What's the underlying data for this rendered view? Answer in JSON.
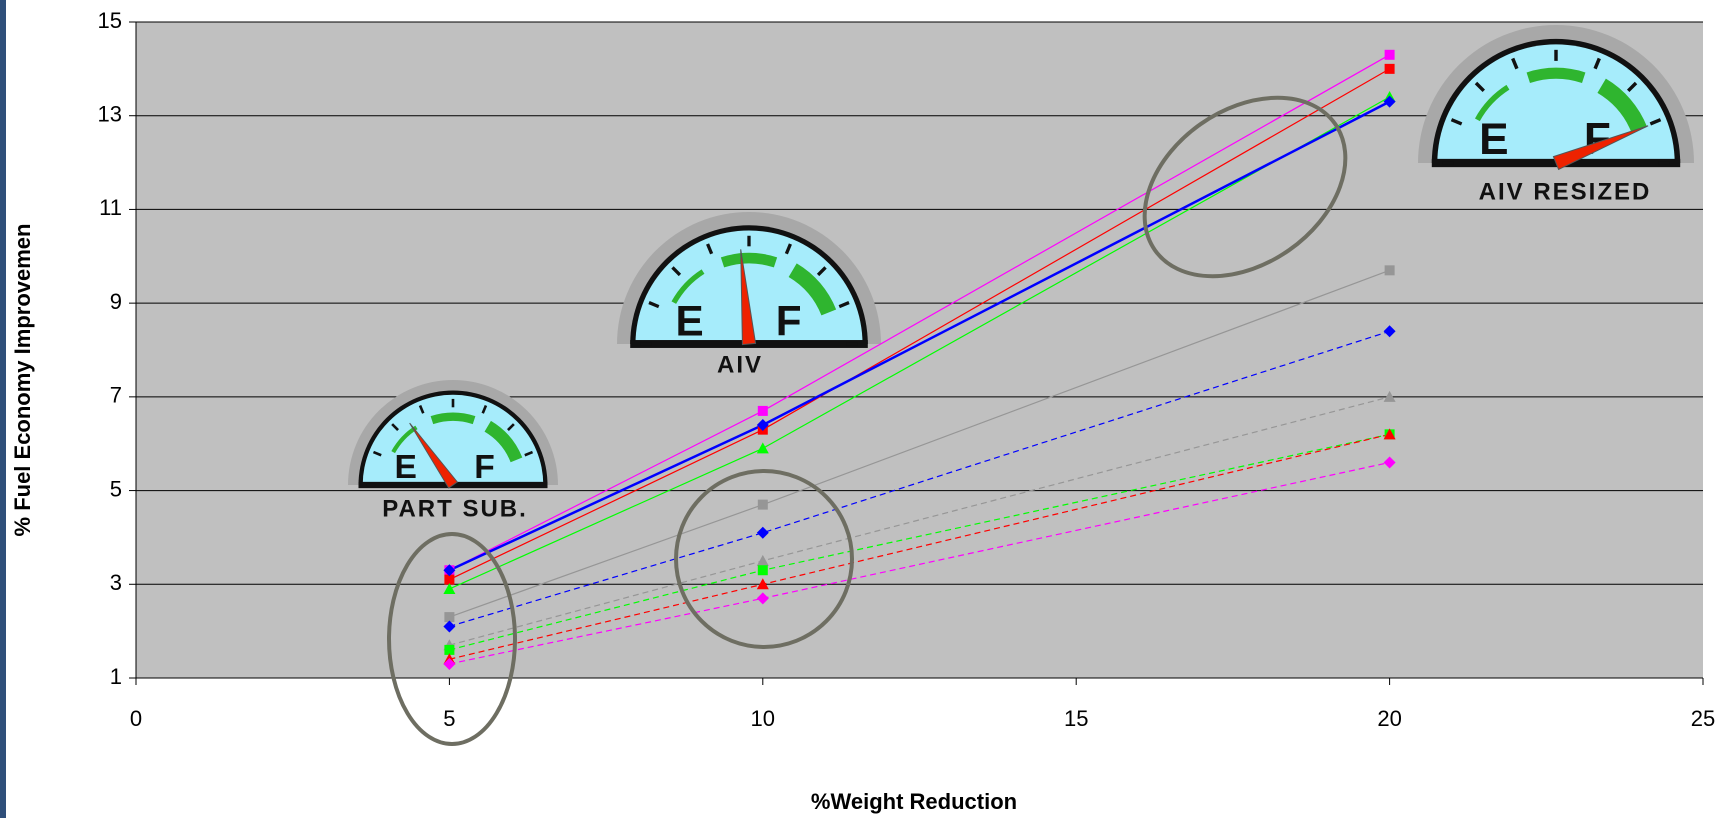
{
  "chart_data": {
    "type": "line",
    "y_label": "% Fuel Economy Improvemen",
    "x_label": "%Weight Reduction",
    "x": [
      5,
      10,
      20
    ],
    "series": [
      {
        "color": "#ff00ff",
        "values": [
          3.3,
          6.7,
          14.3
        ],
        "marker": "square",
        "dash": false
      },
      {
        "color": "#ff0000",
        "values": [
          3.1,
          6.3,
          14.0
        ],
        "marker": "square",
        "dash": false
      },
      {
        "color": "#00ff00",
        "values": [
          2.9,
          5.9,
          13.4
        ],
        "marker": "triangle",
        "dash": false
      },
      {
        "color": "#0000ff",
        "values": [
          3.3,
          6.4,
          13.3
        ],
        "marker": "diamond",
        "dash": false,
        "thick": true
      },
      {
        "color": "#969696",
        "values": [
          2.3,
          4.7,
          9.7
        ],
        "marker": "square",
        "dash": false
      },
      {
        "color": "#0000ff",
        "values": [
          2.1,
          4.1,
          8.4
        ],
        "marker": "diamond",
        "dash": true
      },
      {
        "color": "#969696",
        "values": [
          1.7,
          3.5,
          7.0
        ],
        "marker": "triangle",
        "dash": true
      },
      {
        "color": "#00ff00",
        "values": [
          1.6,
          3.3,
          6.2
        ],
        "marker": "square",
        "dash": true
      },
      {
        "color": "#ff0000",
        "values": [
          1.4,
          3.0,
          6.2
        ],
        "marker": "triangle",
        "dash": true
      },
      {
        "color": "#ff00ff",
        "values": [
          1.3,
          2.7,
          5.6
        ],
        "marker": "diamond",
        "dash": true
      }
    ],
    "xlim": [
      0,
      25
    ],
    "xticks": [
      0,
      5,
      10,
      15,
      20,
      25
    ],
    "ylim": [
      1,
      15
    ],
    "yticks": [
      1,
      3,
      5,
      7,
      9,
      11,
      13,
      15
    ],
    "grid": true,
    "plot_background": "#c0c0c0",
    "gauge_marks": [
      "E",
      "F"
    ],
    "annotations": [
      "PART SUB.",
      "AIV",
      "AIV RESIZED"
    ]
  }
}
